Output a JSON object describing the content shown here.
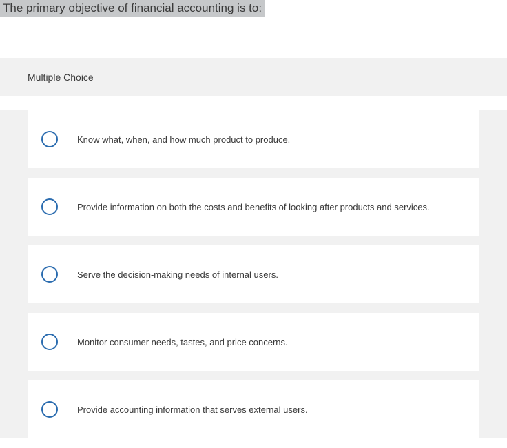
{
  "question": {
    "text": "The primary objective of financial accounting is to:",
    "type_label": "Multiple Choice",
    "highlight_bg": "#c6c8ca",
    "text_color": "#3a3a3a",
    "font_size": 17
  },
  "section": {
    "background_color": "#f1f1f1",
    "option_bg": "#ffffff",
    "radio_border_color": "#2b6caf",
    "option_font_size": 13
  },
  "options": [
    {
      "label": "Know what, when, and how much product to produce."
    },
    {
      "label": "Provide information on both the costs and benefits of looking after products and services."
    },
    {
      "label": "Serve the decision-making needs of internal users."
    },
    {
      "label": "Monitor consumer needs, tastes, and price concerns."
    },
    {
      "label": "Provide accounting information that serves external users."
    }
  ]
}
